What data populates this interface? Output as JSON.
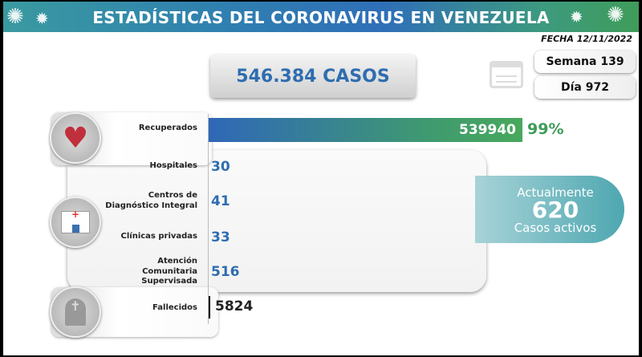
{
  "header": {
    "title": "ESTADÍSTICAS DEL CORONAVIRUS EN VENEZUELA"
  },
  "fecha": "FECHA 12/11/2022",
  "casos": "546.384 CASOS",
  "semana": "Semana 139",
  "dia": "Día 972",
  "recuperados": {
    "label": "Recuperados",
    "value": "539940",
    "percent": "99%",
    "fill_percent": 99
  },
  "hospitalizacion": [
    {
      "label": "Hospitales",
      "value": "30"
    },
    {
      "label": "Centros de Diagnóstico Integral",
      "value": "41"
    },
    {
      "label": "Clínicas privadas",
      "value": "33"
    },
    {
      "label": "Atención Comunitaria Supervisada",
      "value": "516"
    }
  ],
  "activos": {
    "line1": "Actualmente",
    "value": "620",
    "line2": "Casos activos"
  },
  "fallecidos": {
    "label": "Fallecidos",
    "value": "5824"
  },
  "colors": {
    "blue": "#2e6db0",
    "green": "#3f9c5a",
    "teal": "#4ea7b0"
  }
}
